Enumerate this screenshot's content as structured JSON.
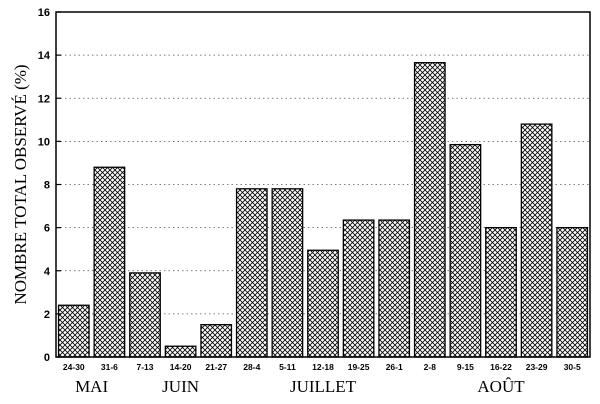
{
  "chart_data": {
    "type": "bar",
    "ylabel": "NOMBRE TOTAL OBSERVÉ (%)",
    "xlabel": "",
    "title": "",
    "ylim": [
      0,
      16
    ],
    "yticks": [
      0,
      2,
      4,
      6,
      8,
      10,
      12,
      14,
      16
    ],
    "grid": "horizontal dotted",
    "categories": [
      "24-30",
      "31-6",
      "7-13",
      "14-20",
      "21-27",
      "28-4",
      "5-11",
      "12-18",
      "19-25",
      "26-1",
      "2-8",
      "9-15",
      "16-22",
      "23-29",
      "30-5"
    ],
    "values": [
      2.4,
      8.8,
      3.9,
      0.5,
      1.5,
      7.8,
      7.8,
      4.95,
      6.35,
      6.35,
      13.65,
      9.85,
      6.0,
      10.8,
      6.0
    ],
    "bar_pattern": "crosshatch",
    "month_groups": [
      {
        "label": "MAI",
        "start": 0,
        "end": 1
      },
      {
        "label": "JUIN",
        "start": 2,
        "end": 4
      },
      {
        "label": "JUILLET",
        "start": 5,
        "end": 9
      },
      {
        "label": "AOÛT",
        "start": 10,
        "end": 14
      }
    ]
  }
}
